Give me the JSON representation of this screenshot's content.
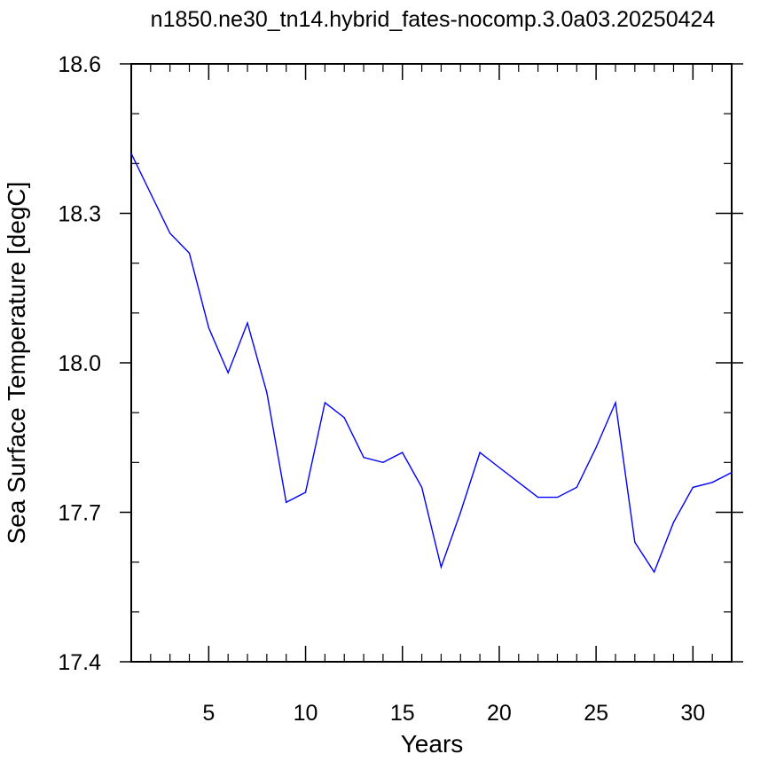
{
  "chart_data": {
    "type": "line",
    "title": "n1850.ne30_tn14.hybrid_fates-nocomp.3.0a03.20250424",
    "xlabel": "Years",
    "ylabel": "Sea Surface Temperature [degC]",
    "xlim": [
      1,
      32
    ],
    "ylim": [
      17.4,
      18.6
    ],
    "x_ticks": [
      5,
      10,
      15,
      20,
      25,
      30
    ],
    "x_tick_labels": [
      "5",
      "10",
      "15",
      "20",
      "25",
      "30"
    ],
    "y_ticks": [
      17.4,
      17.7,
      18.0,
      18.3,
      18.6
    ],
    "y_tick_labels": [
      "17.4",
      "17.7",
      "18.0",
      "18.3",
      "18.6"
    ],
    "grid": false,
    "series": [
      {
        "color": "#0000ff",
        "x": [
          1,
          2,
          3,
          4,
          5,
          6,
          7,
          8,
          9,
          10,
          11,
          12,
          13,
          14,
          15,
          16,
          17,
          18,
          19,
          20,
          21,
          22,
          23,
          24,
          25,
          26,
          27,
          28,
          29,
          30,
          31,
          32
        ],
        "values": [
          18.42,
          18.34,
          18.26,
          18.22,
          18.07,
          17.98,
          18.08,
          17.94,
          17.72,
          17.74,
          17.92,
          17.89,
          17.81,
          17.8,
          17.82,
          17.75,
          17.59,
          17.7,
          17.82,
          17.79,
          17.76,
          17.73,
          17.73,
          17.75,
          17.83,
          17.92,
          17.64,
          17.58,
          17.68,
          17.75,
          17.76,
          17.78
        ]
      }
    ]
  }
}
